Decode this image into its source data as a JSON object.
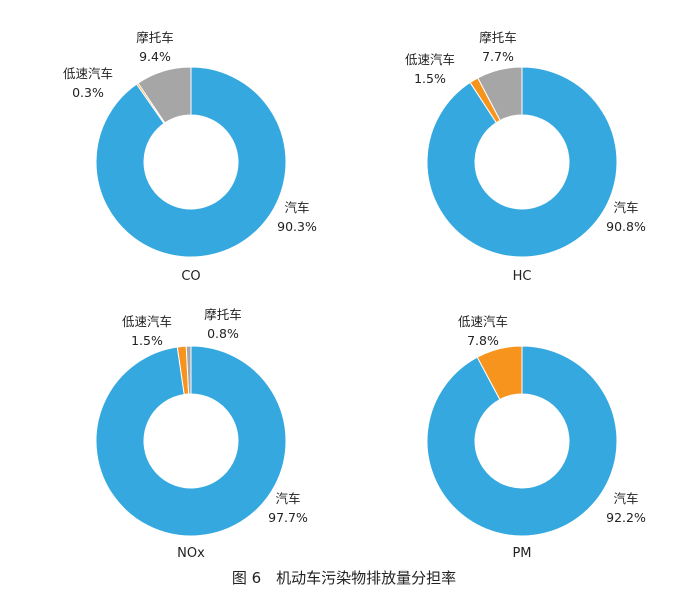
{
  "figure_caption": "图 6　机动车污染物排放量分担率",
  "colors": {
    "汽车": "#35a8e0",
    "低速汽车": "#f7941d",
    "摩托车": "#a6a6a6",
    "separator": "#ffffff"
  },
  "chart_data": [
    {
      "type": "pie",
      "donut": true,
      "title": "CO",
      "slices": [
        {
          "label": "汽车",
          "value": 90.3,
          "display": "90.3%"
        },
        {
          "label": "低速汽车",
          "value": 0.3,
          "display": "0.3%"
        },
        {
          "label": "摩托车",
          "value": 9.4,
          "display": "9.4%"
        }
      ]
    },
    {
      "type": "pie",
      "donut": true,
      "title": "HC",
      "slices": [
        {
          "label": "汽车",
          "value": 90.8,
          "display": "90.8%"
        },
        {
          "label": "低速汽车",
          "value": 1.5,
          "display": "1.5%"
        },
        {
          "label": "摩托车",
          "value": 7.7,
          "display": "7.7%"
        }
      ]
    },
    {
      "type": "pie",
      "donut": true,
      "title": "NOx",
      "slices": [
        {
          "label": "汽车",
          "value": 97.7,
          "display": "97.7%"
        },
        {
          "label": "低速汽车",
          "value": 1.5,
          "display": "1.5%"
        },
        {
          "label": "摩托车",
          "value": 0.8,
          "display": "0.8%"
        }
      ]
    },
    {
      "type": "pie",
      "donut": true,
      "title": "PM",
      "slices": [
        {
          "label": "汽车",
          "value": 92.2,
          "display": "92.2%"
        },
        {
          "label": "低速汽车",
          "value": 7.8,
          "display": "7.8%"
        }
      ]
    }
  ]
}
